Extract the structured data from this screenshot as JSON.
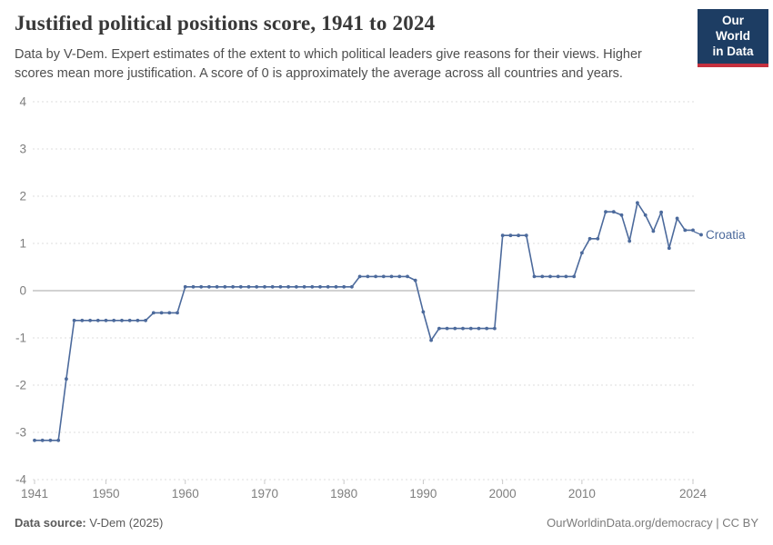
{
  "header": {
    "title": "Justified political positions score, 1941 to 2024",
    "subtitle": "Data by V-Dem. Expert estimates of the extent to which political leaders give reasons for their views. Higher scores mean more justification. A score of 0 is approximately the average across all countries and years.",
    "logo": {
      "line1": "Our World",
      "line2": "in Data"
    }
  },
  "chart_data": {
    "type": "line",
    "title": "Justified political positions score, 1941 to 2024",
    "xlabel": "",
    "ylabel": "",
    "xlim": [
      1941,
      2024
    ],
    "ylim": [
      -4,
      4
    ],
    "grid": "horizontal-dashed",
    "zero_line": true,
    "legend_position": "end-of-line-label",
    "x_ticks": [
      1941,
      1950,
      1960,
      1970,
      1980,
      1990,
      2000,
      2010,
      2024
    ],
    "y_ticks": [
      4,
      3,
      2,
      1,
      0,
      -1,
      -2,
      -3,
      -4
    ],
    "end_label": "Croatia",
    "series": [
      {
        "name": "Croatia",
        "color": "#4c6a9c",
        "x": [
          1941,
          1942,
          1943,
          1944,
          1945,
          1946,
          1947,
          1948,
          1949,
          1950,
          1951,
          1952,
          1953,
          1954,
          1955,
          1956,
          1957,
          1958,
          1959,
          1960,
          1961,
          1962,
          1963,
          1964,
          1965,
          1966,
          1967,
          1968,
          1969,
          1970,
          1971,
          1972,
          1973,
          1974,
          1975,
          1976,
          1977,
          1978,
          1979,
          1980,
          1981,
          1982,
          1983,
          1984,
          1985,
          1986,
          1987,
          1988,
          1989,
          1990,
          1991,
          1992,
          1993,
          1994,
          1995,
          1996,
          1997,
          1998,
          1999,
          2000,
          2001,
          2002,
          2003,
          2004,
          2005,
          2006,
          2007,
          2008,
          2009,
          2010,
          2011,
          2012,
          2013,
          2014,
          2015,
          2016,
          2017,
          2018,
          2019,
          2020,
          2021,
          2022,
          2023,
          2024
        ],
        "values": [
          -3.17,
          -3.17,
          -3.17,
          -3.17,
          -1.87,
          -0.63,
          -0.63,
          -0.63,
          -0.63,
          -0.63,
          -0.63,
          -0.63,
          -0.63,
          -0.63,
          -0.63,
          -0.47,
          -0.47,
          -0.47,
          -0.47,
          0.08,
          0.08,
          0.08,
          0.08,
          0.08,
          0.08,
          0.08,
          0.08,
          0.08,
          0.08,
          0.08,
          0.08,
          0.08,
          0.08,
          0.08,
          0.08,
          0.08,
          0.08,
          0.08,
          0.08,
          0.08,
          0.08,
          0.3,
          0.3,
          0.3,
          0.3,
          0.3,
          0.3,
          0.3,
          0.22,
          -0.45,
          -1.05,
          -0.8,
          -0.8,
          -0.8,
          -0.8,
          -0.8,
          -0.8,
          -0.8,
          -0.8,
          1.17,
          1.17,
          1.17,
          1.17,
          0.3,
          0.3,
          0.3,
          0.3,
          0.3,
          0.3,
          0.8,
          1.1,
          1.1,
          1.67,
          1.67,
          1.6,
          1.05,
          1.86,
          1.6,
          1.26,
          1.66,
          0.9,
          1.53,
          1.28,
          1.28
        ]
      }
    ]
  },
  "footer": {
    "source_label": "Data source:",
    "source_value": " V-Dem (2025)",
    "attribution": "OurWorldinData.org/democracy | CC BY"
  },
  "colors": {
    "line_blue": "#4c6a9c",
    "logo_navy": "#1d3d63",
    "logo_red": "#c5303e",
    "gridline": "#dcdcdc",
    "zero_line": "#a5a5a5",
    "tick_text": "#7e7e7e"
  }
}
